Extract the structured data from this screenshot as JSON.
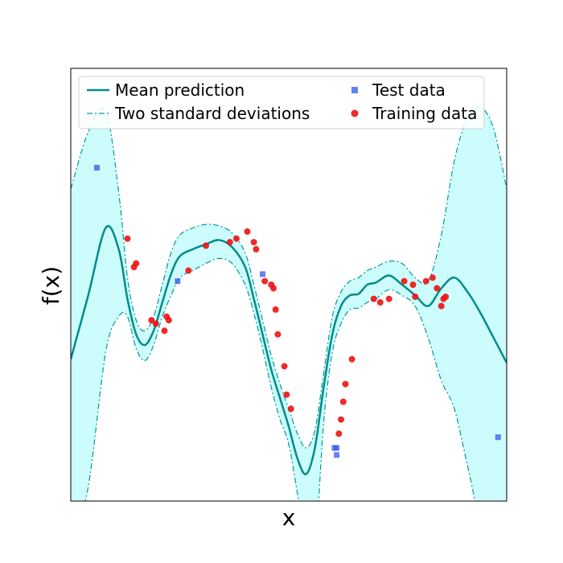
{
  "chart_data": {
    "type": "line",
    "title": "",
    "xlabel": "x",
    "ylabel": "f(x)",
    "xlim": [
      0,
      10
    ],
    "ylim": [
      -2.8,
      3.3
    ],
    "grid": false,
    "legend": {
      "placement": "top",
      "entries": [
        {
          "label": "Mean prediction",
          "series": "mean"
        },
        {
          "label": "Two standard deviations",
          "series": "band"
        },
        {
          "label": "Test data",
          "series": "test"
        },
        {
          "label": "Training data",
          "series": "train"
        }
      ]
    },
    "colors": {
      "mean": "#008b8b",
      "band_fill": "#ccfcfc",
      "band_edge": "#009a9a",
      "train": "#ee1111",
      "test": "#3355ee"
    },
    "series": [
      {
        "name": "Mean prediction",
        "kind": "line",
        "x": [
          0.0,
          0.4,
          0.8,
          1.1,
          1.3,
          1.5,
          1.7,
          1.9,
          2.1,
          2.3,
          2.5,
          2.8,
          3.1,
          3.4,
          3.7,
          4.0,
          4.2,
          4.4,
          4.6,
          4.8,
          5.0,
          5.2,
          5.4,
          5.6,
          5.8,
          6.0,
          6.2,
          6.4,
          6.6,
          6.8,
          7.0,
          7.3,
          7.6,
          7.9,
          8.2,
          8.5,
          8.8,
          9.1,
          9.4,
          9.7,
          10.0
        ],
        "y": [
          -0.8,
          0.1,
          1.05,
          0.75,
          0.05,
          -0.45,
          -0.6,
          -0.4,
          0.0,
          0.4,
          0.65,
          0.75,
          0.82,
          0.88,
          0.78,
          0.5,
          0.05,
          -0.45,
          -0.95,
          -1.35,
          -1.75,
          -2.2,
          -2.42,
          -2.05,
          -1.2,
          -0.45,
          -0.05,
          0.1,
          0.12,
          0.25,
          0.28,
          0.38,
          0.25,
          0.1,
          -0.05,
          0.2,
          0.35,
          0.15,
          -0.15,
          -0.5,
          -0.85
        ]
      },
      {
        "name": "Two standard deviations",
        "kind": "band",
        "x": [
          0.0,
          0.4,
          0.8,
          1.1,
          1.3,
          1.5,
          1.7,
          1.9,
          2.1,
          2.3,
          2.5,
          2.8,
          3.1,
          3.4,
          3.7,
          4.0,
          4.2,
          4.4,
          4.6,
          4.8,
          5.0,
          5.2,
          5.4,
          5.6,
          5.8,
          6.0,
          6.2,
          6.4,
          6.6,
          6.8,
          7.0,
          7.3,
          7.6,
          7.9,
          8.2,
          8.5,
          8.8,
          9.1,
          9.4,
          9.7,
          10.0
        ],
        "y_upper": [
          1.6,
          2.4,
          2.7,
          1.55,
          0.35,
          -0.25,
          -0.4,
          -0.2,
          0.25,
          0.7,
          0.95,
          1.05,
          1.1,
          1.08,
          0.98,
          0.7,
          0.25,
          -0.25,
          -0.75,
          -1.15,
          -1.5,
          -1.85,
          -2.05,
          -1.8,
          -1.0,
          -0.2,
          0.15,
          0.3,
          0.35,
          0.45,
          0.5,
          0.58,
          0.55,
          0.35,
          0.3,
          0.95,
          2.0,
          2.6,
          2.75,
          2.45,
          1.6
        ],
        "y_lower": [
          -3.5,
          -2.6,
          -0.7,
          -0.2,
          -0.2,
          -0.65,
          -0.82,
          -0.6,
          -0.2,
          0.1,
          0.35,
          0.45,
          0.55,
          0.62,
          0.55,
          0.25,
          -0.15,
          -0.65,
          -1.2,
          -1.65,
          -2.0,
          -2.7,
          -3.5,
          -3.5,
          -1.7,
          -0.7,
          -0.3,
          -0.1,
          -0.08,
          0.0,
          0.05,
          0.18,
          0.1,
          -0.05,
          -0.5,
          -1.1,
          -1.5,
          -2.3,
          -3.1,
          -3.5,
          -3.5
        ]
      },
      {
        "name": "Training data",
        "kind": "scatter",
        "x": [
          1.3,
          1.45,
          1.5,
          1.85,
          1.95,
          2.15,
          2.2,
          2.25,
          2.7,
          3.1,
          3.65,
          3.8,
          4.05,
          4.2,
          4.25,
          4.45,
          4.6,
          4.65,
          4.7,
          4.75,
          4.9,
          4.95,
          5.05,
          6.15,
          6.2,
          6.25,
          6.3,
          6.45,
          6.95,
          7.1,
          7.3,
          7.65,
          7.85,
          7.9,
          8.15,
          8.3,
          8.4,
          8.5,
          8.55,
          8.6
        ],
        "y": [
          0.9,
          0.5,
          0.55,
          -0.25,
          -0.3,
          -0.4,
          -0.2,
          -0.25,
          0.45,
          0.8,
          0.85,
          0.9,
          1.0,
          0.85,
          0.75,
          0.3,
          0.25,
          0.2,
          -0.1,
          -0.45,
          -0.9,
          -1.3,
          -1.5,
          -1.85,
          -1.65,
          -1.4,
          -1.15,
          -0.8,
          0.05,
          0.0,
          0.05,
          0.3,
          0.25,
          0.08,
          0.3,
          0.35,
          0.2,
          -0.05,
          0.05,
          0.08
        ]
      },
      {
        "name": "Test data",
        "kind": "scatter",
        "x": [
          0.6,
          2.45,
          4.4,
          6.05,
          6.1,
          6.1,
          9.8
        ],
        "y": [
          1.9,
          0.3,
          0.4,
          -2.05,
          -2.05,
          -2.15,
          -1.9
        ]
      }
    ]
  }
}
